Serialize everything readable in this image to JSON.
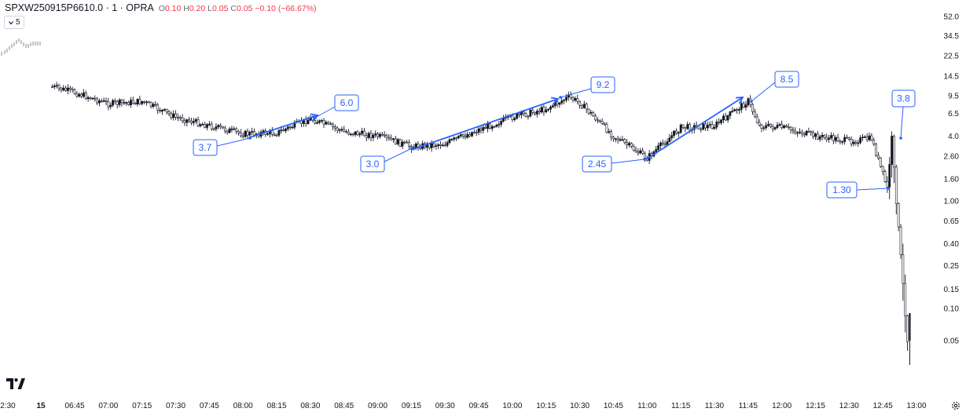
{
  "header": {
    "symbol": "SPXW250915P6610.0 · 1 · OPRA",
    "o_label": "O",
    "o_value": "0.10",
    "h_label": "H",
    "h_value": "0.20",
    "l_label": "L",
    "l_value": "0.05",
    "c_label": "C",
    "c_value": "0.05",
    "change": "−0.10 (−66.67%)"
  },
  "interval_button": {
    "label": "5"
  },
  "colors": {
    "annotation": "#2962ff",
    "candle": "#131722",
    "background": "#ffffff",
    "change": "#f23645"
  },
  "icons": {
    "logo": "tradingview-logo-icon",
    "settings": "gear-icon",
    "interval": "chevron-down-icon"
  },
  "chart_data": {
    "type": "candlestick",
    "scale": "log",
    "xlabel": "",
    "ylabel": "",
    "y_tick_labels": [
      "52.0",
      "34.5",
      "22.5",
      "14.5",
      "9.5",
      "6.5",
      "4.0",
      "2.60",
      "1.60",
      "1.00",
      "0.65",
      "0.40",
      "0.25",
      "0.15",
      "0.10",
      "0.05"
    ],
    "x_tick_labels": [
      "2:30",
      "15",
      "06:45",
      "07:00",
      "07:15",
      "07:30",
      "07:45",
      "08:00",
      "08:15",
      "08:30",
      "08:45",
      "09:00",
      "09:15",
      "09:30",
      "09:45",
      "10:00",
      "10:15",
      "10:30",
      "10:45",
      "11:00",
      "11:15",
      "11:30",
      "11:45",
      "12:00",
      "12:15",
      "12:30",
      "12:45",
      "13:00"
    ],
    "price_path": [
      [
        "06:35",
        11.5
      ],
      [
        "06:45",
        10.2
      ],
      [
        "07:00",
        8.0
      ],
      [
        "07:15",
        8.4
      ],
      [
        "07:30",
        6.0
      ],
      [
        "07:45",
        5.0
      ],
      [
        "08:00",
        4.2
      ],
      [
        "08:15",
        4.3
      ],
      [
        "08:30",
        5.8
      ],
      [
        "08:45",
        4.4
      ],
      [
        "09:00",
        4.0
      ],
      [
        "09:15",
        3.2
      ],
      [
        "09:30",
        3.4
      ],
      [
        "09:45",
        4.6
      ],
      [
        "10:00",
        6.0
      ],
      [
        "10:15",
        7.2
      ],
      [
        "10:25",
        9.2
      ],
      [
        "10:30",
        8.2
      ],
      [
        "10:45",
        4.0
      ],
      [
        "11:00",
        2.5
      ],
      [
        "11:15",
        4.8
      ],
      [
        "11:30",
        5.0
      ],
      [
        "11:45",
        8.5
      ],
      [
        "11:50",
        5.0
      ],
      [
        "12:00",
        4.8
      ],
      [
        "12:15",
        4.0
      ],
      [
        "12:30",
        3.6
      ],
      [
        "12:40",
        3.8
      ],
      [
        "12:47",
        1.3
      ],
      [
        "12:49",
        3.8
      ],
      [
        "12:51",
        1.0
      ],
      [
        "12:53",
        0.3
      ],
      [
        "12:56",
        0.05
      ]
    ],
    "annotations": [
      {
        "label": "3.7",
        "type": "label"
      },
      {
        "label": "6.0",
        "type": "label"
      },
      {
        "label": "3.0",
        "type": "label"
      },
      {
        "label": "9.2",
        "type": "label"
      },
      {
        "label": "2.45",
        "type": "label"
      },
      {
        "label": "8.5",
        "type": "label"
      },
      {
        "label": "1.30",
        "type": "label"
      },
      {
        "label": "3.8",
        "type": "label"
      }
    ],
    "trend_arrows": [
      {
        "from": 3.7,
        "to": 6.0
      },
      {
        "from": 3.0,
        "to": 9.2
      },
      {
        "from": 2.45,
        "to": 8.5
      }
    ],
    "grid": false,
    "legend": "none"
  }
}
